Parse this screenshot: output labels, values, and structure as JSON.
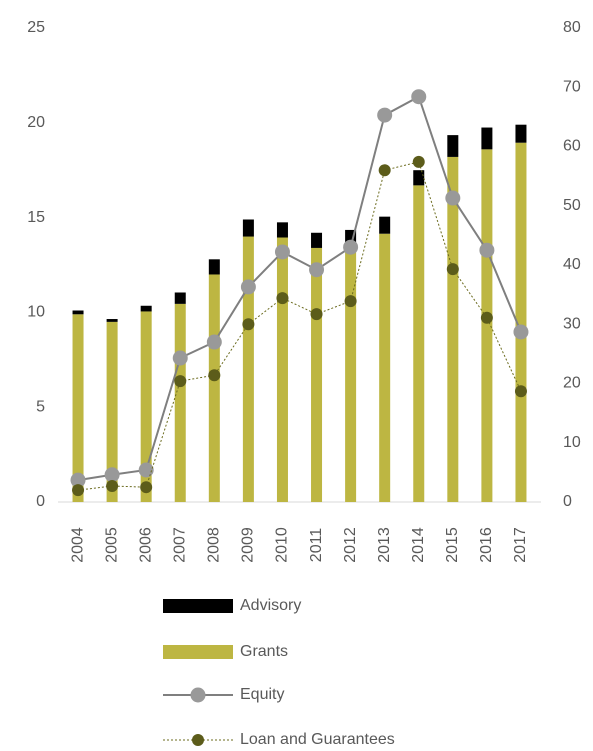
{
  "chart_data": {
    "type": "bar-line",
    "categories": [
      "2004",
      "2005",
      "2006",
      "2007",
      "2008",
      "2009",
      "2010",
      "2011",
      "2012",
      "2013",
      "2014",
      "2015",
      "2016",
      "2017"
    ],
    "series": [
      {
        "name": "Advisory",
        "type": "bar",
        "axis": "y",
        "color": "#000000",
        "values": [
          0.2,
          0.15,
          0.3,
          0.6,
          0.8,
          0.9,
          0.8,
          0.8,
          0.75,
          0.9,
          0.8,
          1.15,
          1.15,
          0.95
        ]
      },
      {
        "name": "Grants",
        "type": "bar",
        "axis": "y",
        "color": "#bdb642",
        "values": [
          9.9,
          9.5,
          10.05,
          10.45,
          12.0,
          14.0,
          13.95,
          13.4,
          13.6,
          14.15,
          16.7,
          18.2,
          18.6,
          18.95
        ]
      },
      {
        "name": "Equity",
        "type": "line",
        "axis": "y2",
        "color": "#7f7f7f",
        "marker_color": "#999999",
        "values": [
          3.7,
          4.6,
          5.4,
          24.3,
          27,
          36.3,
          42.2,
          39.2,
          43,
          65.3,
          68.4,
          51.3,
          42.5,
          28.7
        ]
      },
      {
        "name": "Loan and Guarantees",
        "type": "line",
        "axis": "y2",
        "color": "#6b6b1e",
        "marker_color": "#5c5c1a",
        "dotted": true,
        "values": [
          2.0,
          2.7,
          2.5,
          20.4,
          21.4,
          30,
          34.4,
          31.7,
          33.9,
          56,
          57.4,
          39.3,
          31.1,
          18.7
        ]
      }
    ],
    "ylim": [
      0,
      25
    ],
    "yticks": [
      0,
      5,
      10,
      15,
      20,
      25
    ],
    "y2lim": [
      0,
      80
    ],
    "y2ticks": [
      0,
      10,
      20,
      30,
      40,
      50,
      60,
      70,
      80
    ],
    "grid": false,
    "legend": "bottom"
  }
}
